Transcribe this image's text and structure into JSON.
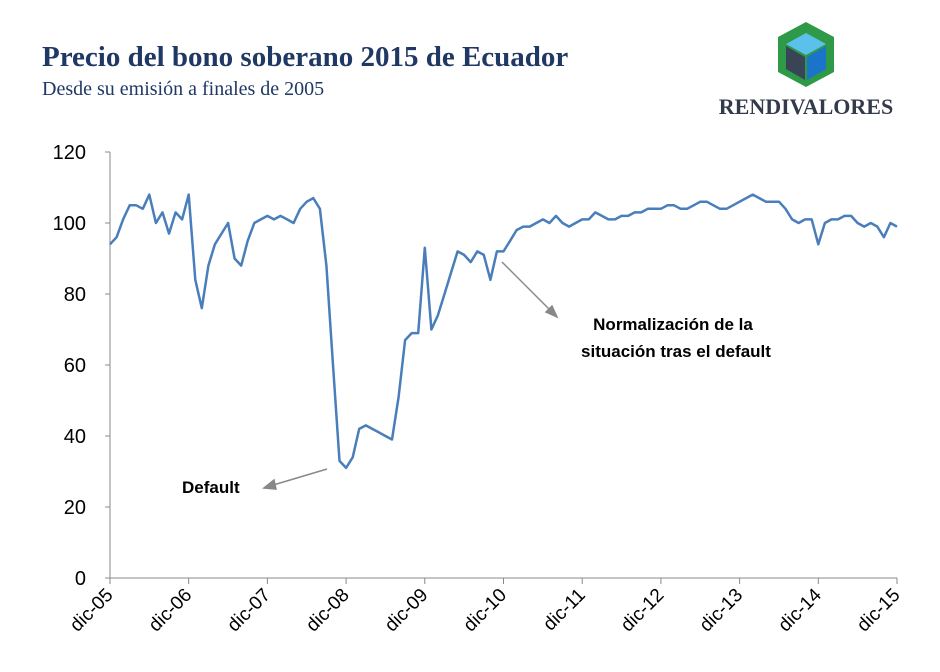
{
  "chart_data": {
    "type": "line",
    "title": "Precio del bono soberano 2015 de Ecuador",
    "subtitle": "Desde su emisión a finales de 2005",
    "logo": "RENDIVALORES",
    "annotations": [
      "Default",
      "Normalización de la",
      "situación tras el default"
    ],
    "color": "#4a7ebb",
    "categories": [
      "dic-05",
      null,
      null,
      null,
      null,
      null,
      null,
      null,
      null,
      null,
      null,
      null,
      "dic-06",
      null,
      null,
      null,
      null,
      null,
      null,
      null,
      null,
      null,
      null,
      null,
      "dic-07",
      null,
      null,
      null,
      null,
      null,
      null,
      null,
      null,
      null,
      null,
      null,
      "dic-08",
      null,
      null,
      null,
      null,
      null,
      null,
      null,
      null,
      null,
      null,
      null,
      "dic-09",
      null,
      null,
      null,
      null,
      null,
      null,
      null,
      null,
      null,
      null,
      null,
      "dic-10",
      null,
      null,
      null,
      null,
      null,
      null,
      null,
      null,
      null,
      null,
      null,
      "dic-11",
      null,
      null,
      null,
      null,
      null,
      null,
      null,
      null,
      null,
      null,
      null,
      "dic-12",
      null,
      null,
      null,
      null,
      null,
      null,
      null,
      null,
      null,
      null,
      null,
      "dic-13",
      null,
      null,
      null,
      null,
      null,
      null,
      null,
      null,
      null,
      null,
      null,
      "dic-14",
      null,
      null,
      null,
      null,
      null,
      null,
      null,
      null,
      null,
      null,
      null,
      "dic-15"
    ],
    "values": [
      94,
      96,
      101,
      105,
      105,
      104,
      108,
      100,
      103,
      97,
      103,
      101,
      108,
      84,
      76,
      88,
      94,
      97,
      100,
      90,
      88,
      95,
      100,
      101,
      102,
      101,
      102,
      101,
      100,
      104,
      106,
      107,
      104,
      88,
      60,
      33,
      31,
      34,
      42,
      43,
      42,
      41,
      40,
      39,
      51,
      67,
      69,
      69,
      93,
      70,
      74,
      80,
      86,
      92,
      91,
      89,
      92,
      91,
      84,
      92,
      92,
      95,
      98,
      99,
      99,
      100,
      101,
      100,
      102,
      100,
      99,
      100,
      101,
      101,
      103,
      102,
      101,
      101,
      102,
      102,
      103,
      103,
      104,
      104,
      104,
      105,
      105,
      104,
      104,
      105,
      106,
      106,
      105,
      104,
      104,
      105,
      106,
      107,
      108,
      107,
      106,
      106,
      106,
      104,
      101,
      100,
      101,
      101,
      94,
      100,
      101,
      101,
      102,
      102,
      100,
      99,
      100,
      99,
      96,
      100,
      99
    ],
    "ylim": [
      0,
      120
    ],
    "yticks": [
      0,
      20,
      40,
      60,
      80,
      100,
      120
    ],
    "grid": false
  }
}
